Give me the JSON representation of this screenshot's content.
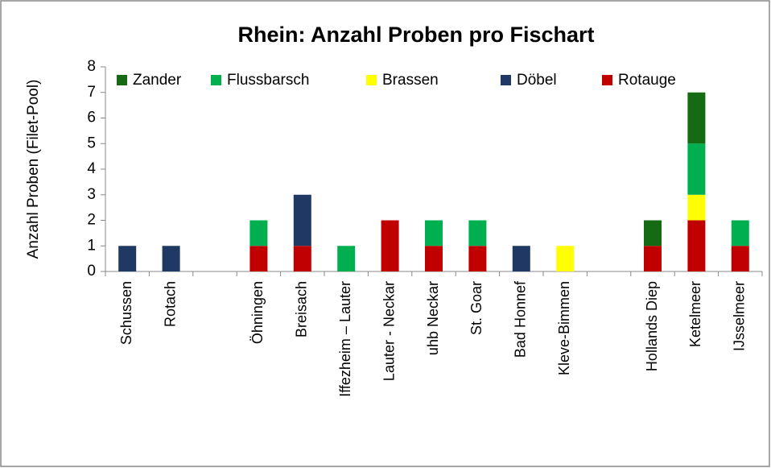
{
  "chart_data": {
    "type": "stacked_bar",
    "title": "Rhein: Anzahl Proben pro Fischart",
    "y_label": "Anzahl  Proben (Filet-Pool)",
    "categories": [
      "Schussen",
      "Rotach",
      null,
      "Öhningen",
      "Breisach",
      "Iffezheim – Lauter",
      "Lauter - Neckar",
      "uhb Neckar",
      "St. Goar",
      "Bad Honnef",
      "Kleve-Bimmen",
      null,
      "Hollands Diep",
      "Ketelmeer",
      "IJsselmeer"
    ],
    "series": [
      {
        "name": "Zander",
        "color": "#156b13",
        "values": [
          0,
          0,
          0,
          0,
          0,
          0,
          0,
          0,
          0,
          0,
          0,
          0,
          1,
          2,
          0
        ]
      },
      {
        "name": "Flussbarsch",
        "color": "#00b050",
        "values": [
          0,
          0,
          0,
          1,
          0,
          1,
          0,
          1,
          1,
          0,
          0,
          0,
          0,
          2,
          1
        ]
      },
      {
        "name": "Brassen",
        "color": "#ffff00",
        "values": [
          0,
          0,
          0,
          0,
          0,
          0,
          0,
          0,
          0,
          0,
          1,
          0,
          0,
          1,
          0
        ]
      },
      {
        "name": "Döbel",
        "color": "#1f3864",
        "values": [
          1,
          1,
          0,
          0,
          2,
          0,
          0,
          0,
          0,
          1,
          0,
          0,
          0,
          0,
          0
        ]
      },
      {
        "name": "Rotauge",
        "color": "#c00000",
        "values": [
          0,
          0,
          0,
          1,
          1,
          0,
          2,
          1,
          1,
          0,
          0,
          0,
          1,
          2,
          1
        ]
      }
    ],
    "ylim": [
      0,
      8
    ],
    "yticks": [
      0,
      1,
      2,
      3,
      4,
      5,
      6,
      7,
      8
    ],
    "grid": false,
    "legend": "top"
  }
}
